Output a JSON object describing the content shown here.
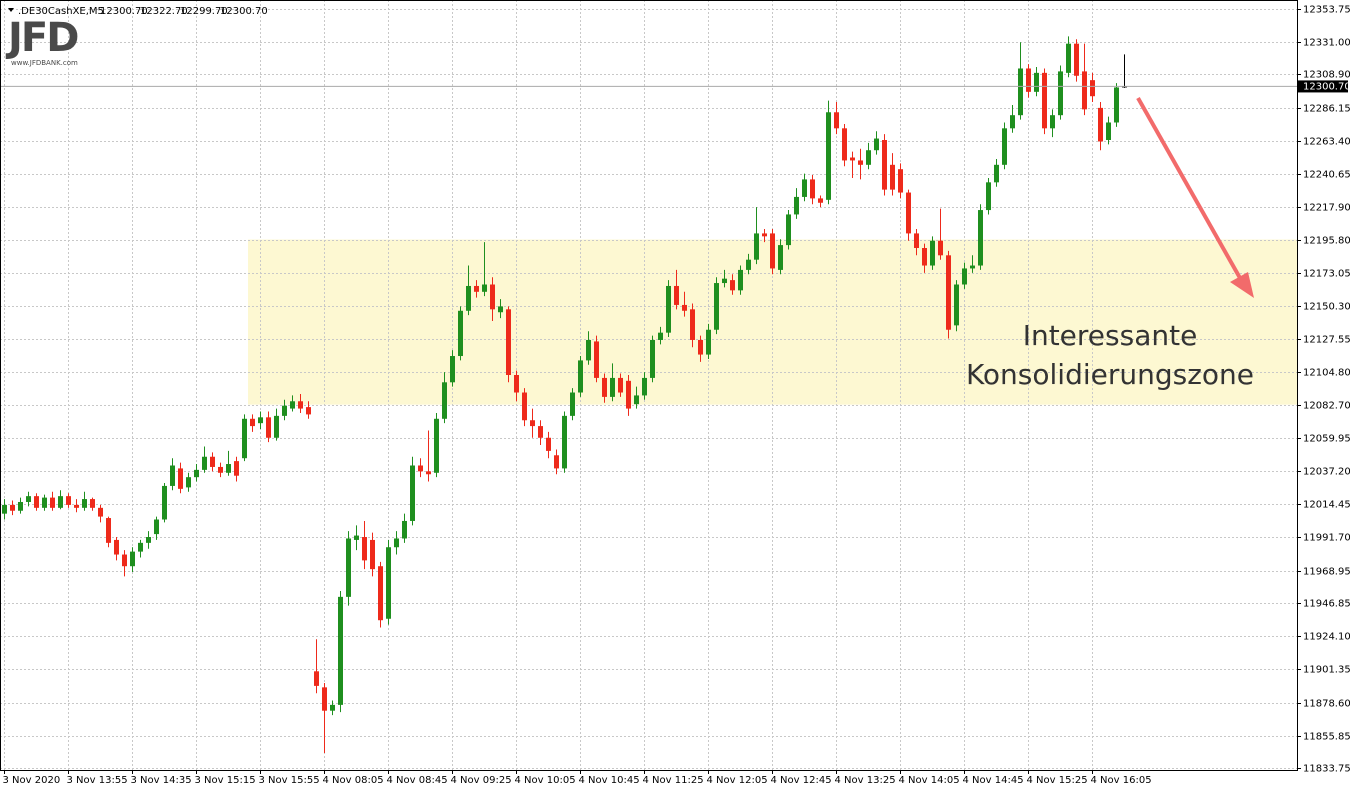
{
  "chart_data": {
    "type": "candlestick",
    "symbol": ".DE30CashXE,M5",
    "ohlc": [
      "12300.70",
      "12322.70",
      "12299.70",
      "12300.70"
    ],
    "logo": "JFD",
    "logo_url": "www.JFDBANK.com",
    "annotation": [
      "Interessante",
      "Konsolidierungszone"
    ],
    "up_color": "#1f8f1f",
    "down_color": "#ee2a1b",
    "grid": true,
    "ylim": [
      11833.75,
      12353.75
    ],
    "yticks": [
      12353.75,
      {
        "value": 12331,
        "label": "12331.00"
      },
      {
        "value": 12308.9,
        "label": "12308.90"
      },
      12286.15,
      {
        "value": 12263.4,
        "label": "12263.40"
      },
      12240.65,
      {
        "value": 12217.9,
        "label": "12217.90"
      },
      {
        "value": 12195.8,
        "label": "12195.80"
      },
      12173.05,
      {
        "value": 12150.3,
        "label": "12150.30"
      },
      12127.55,
      {
        "value": 12104.8,
        "label": "12104.80"
      },
      {
        "value": 12082.7,
        "label": "12082.70"
      },
      12059.95,
      {
        "value": 12037.2,
        "label": "12037.20"
      },
      12014.45,
      {
        "value": 11991.7,
        "label": "11991.70"
      },
      11968.95,
      11946.85,
      {
        "value": 11924.1,
        "label": "11924.10"
      },
      11901.35,
      {
        "value": 11878.6,
        "label": "11878.60"
      },
      11855.85,
      11833.75
    ],
    "price_line": {
      "value": 12300.7,
      "label": "12300.70"
    },
    "zone": {
      "from": 12082.7,
      "to": 12195.8,
      "color": "#fdf8d2"
    },
    "categories": [
      "3 Nov 2020",
      null,
      null,
      null,
      null,
      null,
      null,
      null,
      "3 Nov 13:55",
      null,
      null,
      null,
      null,
      null,
      null,
      null,
      "3 Nov 14:35",
      null,
      null,
      null,
      null,
      null,
      null,
      null,
      "3 Nov 15:15",
      null,
      null,
      null,
      null,
      null,
      null,
      null,
      "3 Nov 15:55",
      null,
      null,
      null,
      null,
      null,
      null,
      null,
      "4 Nov 08:05",
      null,
      null,
      null,
      null,
      null,
      null,
      null,
      "4 Nov 08:45",
      null,
      null,
      null,
      null,
      null,
      null,
      null,
      "4 Nov 09:25",
      null,
      null,
      null,
      null,
      null,
      null,
      null,
      "4 Nov 10:05",
      null,
      null,
      null,
      null,
      null,
      null,
      null,
      "4 Nov 10:45",
      null,
      null,
      null,
      null,
      null,
      null,
      null,
      "4 Nov 11:25",
      null,
      null,
      null,
      null,
      null,
      null,
      null,
      "4 Nov 12:05",
      null,
      null,
      null,
      null,
      null,
      null,
      null,
      "4 Nov 12:45",
      null,
      null,
      null,
      null,
      null,
      null,
      null,
      "4 Nov 13:25",
      null,
      null,
      null,
      null,
      null,
      null,
      null,
      "4 Nov 14:05",
      null,
      null,
      null,
      null,
      null,
      null,
      null,
      "4 Nov 14:45",
      null,
      null,
      null,
      null,
      null,
      null,
      null,
      "4 Nov 15:25",
      null,
      null,
      null,
      null,
      null,
      null,
      null,
      "4 Nov 16:05",
      null,
      null,
      null,
      null
    ],
    "open": [
      12008,
      12014,
      12010,
      12016,
      12020,
      12012,
      12019,
      12012,
      12020,
      12014,
      12012,
      12018,
      12012,
      12005,
      11990,
      11980,
      11972,
      11982,
      11988,
      11994,
      12004,
      12027,
      12039,
      12026,
      12033,
      12038,
      12047,
      12040,
      12036,
      12044,
      12046,
      12073,
      12070,
      12074,
      12060,
      12075,
      12080,
      12085,
      12081,
      11900,
      11889,
      11873,
      11877,
      11951,
      11990,
      11992,
      11990,
      11972,
      11936,
      11985,
      11991,
      12003,
      12041,
      12037,
      12036,
      12073,
      12098,
      12116,
      12147,
      12164,
      12160,
      12165,
      12146,
      12148,
      12103,
      12091,
      12072,
      12068,
      12060,
      12048,
      12039,
      12075,
      12091,
      12113,
      12126,
      12101,
      12088,
      12101,
      12099,
      12083,
      12089,
      12101,
      12127,
      12132,
      12164,
      12151,
      12148,
      12127,
      12117,
      12134,
      12166,
      12168,
      12161,
      12175,
      12182,
      12200,
      12200,
      12175,
      12192,
      12213,
      12225,
      12237,
      12224,
      12223,
      12283,
      12272,
      12252,
      12250,
      12247,
      12257,
      12264,
      12247,
      12244,
      12228,
      12200,
      12190,
      12178,
      12195,
      12185,
      12137,
      12165,
      12176,
      12178,
      12216,
      12235,
      12247,
      12272,
      12281,
      12313,
      12297,
      12310,
      12272,
      12281,
      12310,
      12330,
      12311,
      12305,
      12286,
      12264,
      12276,
      12300.7
    ],
    "high": [
      12018,
      12017,
      12019,
      12023,
      12022,
      12021,
      12023,
      12024,
      12022,
      12018,
      12023,
      12019,
      12014,
      12006,
      11992,
      11983,
      11985,
      11990,
      11996,
      12006,
      12029,
      12046,
      12043,
      12036,
      12042,
      12054,
      12050,
      12043,
      12051,
      12047,
      12076,
      12076,
      12078,
      12078,
      12080,
      12086,
      12089,
      12090,
      12085,
      11922,
      11892,
      11880,
      11955,
      11996,
      12000,
      12003,
      11995,
      11975,
      11990,
      11996,
      12008,
      12047,
      12046,
      12065,
      12077,
      12105,
      12120,
      12150,
      12178,
      12168,
      12194,
      12170,
      12155,
      12150,
      12106,
      12094,
      12080,
      12072,
      12064,
      12052,
      12078,
      12094,
      12116,
      12133,
      12130,
      12104,
      12111,
      12104,
      12103,
      12095,
      12105,
      12130,
      12136,
      12168,
      12175,
      12160,
      12152,
      12130,
      12138,
      12170,
      12175,
      12172,
      12178,
      12186,
      12218,
      12203,
      12203,
      12196,
      12216,
      12231,
      12241,
      12240,
      12226,
      12291,
      12290,
      12275,
      12256,
      12258,
      12262,
      12270,
      12268,
      12255,
      12248,
      12230,
      12203,
      12193,
      12198,
      12217,
      12188,
      12168,
      12180,
      12185,
      12220,
      12238,
      12251,
      12276,
      12288,
      12331,
      12316,
      12314,
      12313,
      12285,
      12315,
      12335,
      12333,
      12330,
      12310,
      12290,
      12280,
      12303,
      12322.7
    ],
    "low": [
      12004,
      12007,
      12008,
      12013,
      12010,
      12010,
      12010,
      12011,
      12012,
      12009,
      12010,
      12010,
      12002,
      11985,
      11976,
      11965,
      11968,
      11978,
      11984,
      11990,
      12002,
      12024,
      12022,
      12023,
      12030,
      12036,
      12037,
      12033,
      12034,
      12030,
      12044,
      12064,
      12066,
      12057,
      12058,
      12072,
      12078,
      12077,
      12073,
      11885,
      11844,
      11870,
      11872,
      11945,
      11983,
      11970,
      11965,
      11930,
      11932,
      11980,
      11988,
      12000,
      12033,
      12030,
      12033,
      12070,
      12095,
      12113,
      12144,
      12156,
      12157,
      12140,
      12142,
      12098,
      12085,
      12068,
      12060,
      12055,
      12046,
      12035,
      12036,
      12072,
      12088,
      12110,
      12098,
      12084,
      12085,
      12088,
      12075,
      12080,
      12086,
      12098,
      12124,
      12129,
      12148,
      12143,
      12122,
      12112,
      12114,
      12131,
      12163,
      12158,
      12158,
      12172,
      12179,
      12194,
      12172,
      12172,
      12189,
      12210,
      12222,
      12220,
      12218,
      12220,
      12268,
      12246,
      12238,
      12237,
      12244,
      12254,
      12226,
      12226,
      12224,
      12195,
      12185,
      12173,
      12175,
      12182,
      12128,
      12133,
      12162,
      12173,
      12175,
      12213,
      12232,
      12244,
      12269,
      12278,
      12293,
      12294,
      12268,
      12266,
      12278,
      12307,
      12304,
      12281,
      12290,
      12257,
      12261,
      12273,
      12299.7
    ],
    "close": [
      12014,
      12010,
      12016,
      12020,
      12012,
      12019,
      12012,
      12020,
      12014,
      12012,
      12018,
      12012,
      12006,
      11988,
      11980,
      11972,
      11982,
      11988,
      11992,
      12004,
      12027,
      12041,
      12025,
      12033,
      12038,
      12047,
      12040,
      12036,
      12042,
      12034,
      12073,
      12068,
      12074,
      12060,
      12075,
      12082,
      12085,
      12080,
      12076,
      11890,
      11873,
      11877,
      11951,
      11991,
      11993,
      11976,
      11970,
      11935,
      11985,
      11991,
      12003,
      12041,
      12037,
      12035,
      12073,
      12098,
      12116,
      12147,
      12164,
      12160,
      12165,
      12148,
      12150,
      12103,
      12091,
      12072,
      12068,
      12060,
      12051,
      12039,
      12075,
      12091,
      12113,
      12127,
      12101,
      12088,
      12101,
      12091,
      12080,
      12089,
      12101,
      12127,
      12132,
      12164,
      12151,
      12147,
      12127,
      12117,
      12134,
      12166,
      12169,
      12161,
      12175,
      12182,
      12200,
      12198,
      12176,
      12192,
      12213,
      12225,
      12237,
      12224,
      12221,
      12283,
      12272,
      12250,
      12250,
      12247,
      12257,
      12265,
      12230,
      12230,
      12228,
      12200,
      12190,
      12178,
      12195,
      12185,
      12134,
      12165,
      12176,
      12178,
      12216,
      12235,
      12247,
      12272,
      12281,
      12313,
      12297,
      12310,
      12272,
      12281,
      12311,
      12330,
      12308,
      12285,
      12294,
      12263,
      12276,
      12300,
      12300.7
    ]
  }
}
